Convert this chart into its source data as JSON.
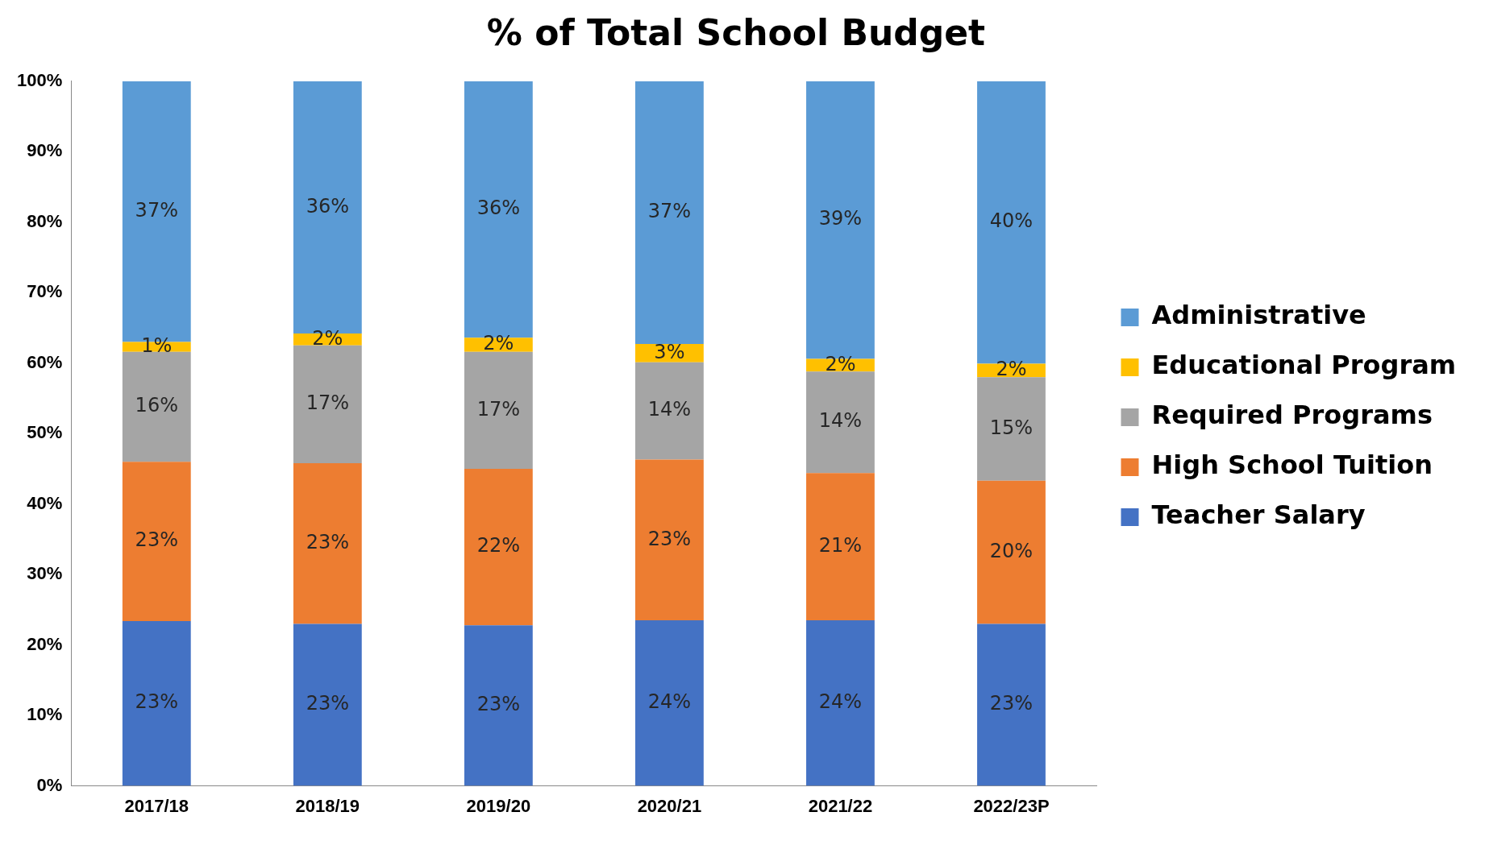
{
  "chart_data": {
    "type": "bar",
    "title": "% of Total School Budget",
    "stacked": true,
    "categories": [
      "2017/18",
      "2018/19",
      "2019/20",
      "2020/21",
      "2021/22",
      "2022/23P"
    ],
    "series": [
      {
        "name": "Teacher Salary",
        "color": "#4472c4",
        "values": [
          23.4,
          23.0,
          22.8,
          23.5,
          23.5,
          23.0
        ],
        "value_labels": [
          "23%",
          "23%",
          "23%",
          "24%",
          "24%",
          "23%"
        ]
      },
      {
        "name": "High School Tuition",
        "color": "#ed7d31",
        "values": [
          22.6,
          22.8,
          22.2,
          22.8,
          20.9,
          20.3
        ],
        "value_labels": [
          "23%",
          "23%",
          "22%",
          "23%",
          "21%",
          "20%"
        ]
      },
      {
        "name": "Required Programs",
        "color": "#a5a5a5",
        "values": [
          15.6,
          16.7,
          16.6,
          13.8,
          14.4,
          14.7
        ],
        "value_labels": [
          "16%",
          "17%",
          "17%",
          "14%",
          "14%",
          "15%"
        ]
      },
      {
        "name": "Educational Program",
        "color": "#ffc000",
        "values": [
          1.4,
          1.7,
          2.0,
          2.6,
          1.8,
          1.9
        ],
        "value_labels": [
          "1%",
          "2%",
          "2%",
          "3%",
          "2%",
          "2%"
        ]
      },
      {
        "name": "Administrative",
        "color": "#5b9bd5",
        "values": [
          37.0,
          35.8,
          36.4,
          37.3,
          39.4,
          40.1
        ],
        "value_labels": [
          "37%",
          "36%",
          "36%",
          "37%",
          "39%",
          "40%"
        ]
      }
    ],
    "ylim": [
      0,
      100
    ],
    "yticks": [
      {
        "value": 0,
        "label": "0%"
      },
      {
        "value": 10,
        "label": "10%"
      },
      {
        "value": 20,
        "label": "20%"
      },
      {
        "value": 30,
        "label": "30%"
      },
      {
        "value": 40,
        "label": "40%"
      },
      {
        "value": 50,
        "label": "50%"
      },
      {
        "value": 60,
        "label": "60%"
      },
      {
        "value": 70,
        "label": "70%"
      },
      {
        "value": 80,
        "label": "80%"
      },
      {
        "value": 90,
        "label": "90%"
      },
      {
        "value": 100,
        "label": "100%"
      }
    ],
    "grid": false,
    "legend": "right"
  }
}
